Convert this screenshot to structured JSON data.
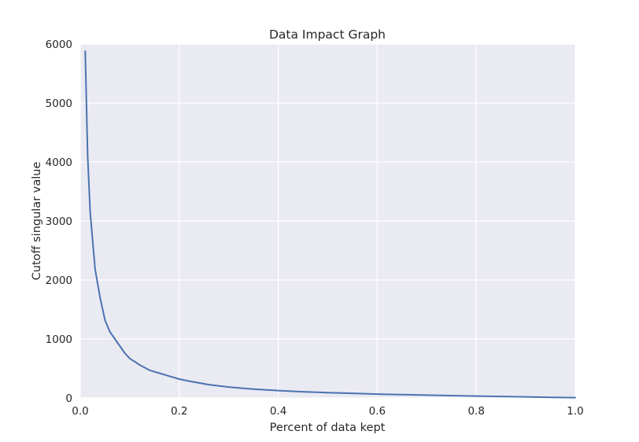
{
  "chart_data": {
    "type": "line",
    "title": "Data Impact Graph",
    "xlabel": "Percent of data kept",
    "ylabel": "Cutoff singular value",
    "xlim": [
      0.0,
      1.0
    ],
    "ylim": [
      0,
      6000
    ],
    "xticks": [
      "0.0",
      "0.2",
      "0.4",
      "0.6",
      "0.8",
      "1.0"
    ],
    "yticks": [
      "0",
      "1000",
      "2000",
      "3000",
      "4000",
      "5000",
      "6000"
    ],
    "grid": true,
    "background_color": "#eaeaf2",
    "series": [
      {
        "color": "#4c72b0",
        "x": [
          0.01,
          0.015,
          0.02,
          0.03,
          0.04,
          0.05,
          0.06,
          0.08,
          0.09,
          0.1,
          0.12,
          0.14,
          0.16,
          0.18,
          0.2,
          0.22,
          0.24,
          0.26,
          0.28,
          0.3,
          0.32,
          0.35,
          0.4,
          0.45,
          0.5,
          0.55,
          0.6,
          0.65,
          0.7,
          0.75,
          0.8,
          0.85,
          0.9,
          0.95,
          1.0
        ],
        "y": [
          5880,
          4100,
          3150,
          2180,
          1700,
          1320,
          1120,
          880,
          760,
          670,
          560,
          470,
          420,
          370,
          320,
          285,
          255,
          225,
          205,
          185,
          170,
          150,
          125,
          105,
          90,
          78,
          65,
          56,
          48,
          40,
          32,
          25,
          18,
          10,
          5
        ]
      }
    ]
  }
}
